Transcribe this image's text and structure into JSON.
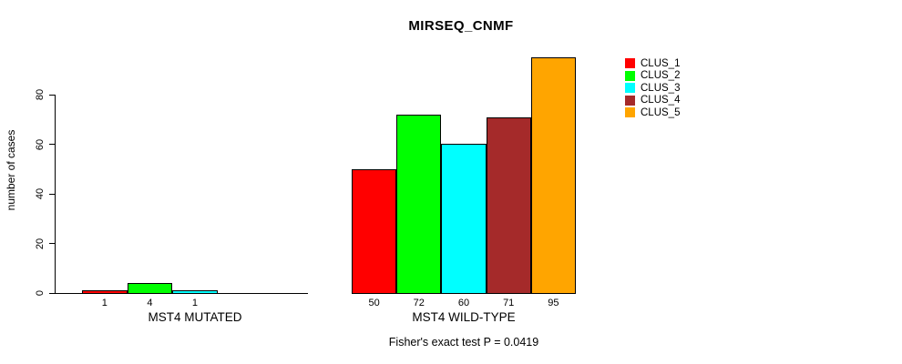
{
  "chart_data": {
    "type": "bar",
    "title": "MIRSEQ_CNMF",
    "ylabel": "number of cases",
    "xlabel": "",
    "ylim": [
      0,
      95
    ],
    "yticks": [
      0,
      20,
      40,
      60,
      80
    ],
    "grid": false,
    "legend_position": "right",
    "categories": [
      "MST4 MUTATED",
      "MST4 WILD-TYPE"
    ],
    "series": [
      {
        "name": "CLUS_1",
        "values": [
          1,
          50
        ]
      },
      {
        "name": "CLUS_2",
        "values": [
          4,
          72
        ]
      },
      {
        "name": "CLUS_3",
        "values": [
          1,
          60
        ]
      },
      {
        "name": "CLUS_4",
        "values": [
          0,
          71
        ]
      },
      {
        "name": "CLUS_5",
        "values": [
          0,
          95
        ]
      }
    ],
    "series_colors": [
      "#FF0000",
      "#00FF00",
      "#00FFFF",
      "#A52A2A",
      "#FFA500"
    ],
    "bar_labels_mutated": [
      "1",
      "4",
      "1"
    ],
    "bar_labels_wildtype": [
      "50",
      "72",
      "60",
      "71",
      "95"
    ],
    "footer": "Fisher's exact test P = 0.0419"
  }
}
